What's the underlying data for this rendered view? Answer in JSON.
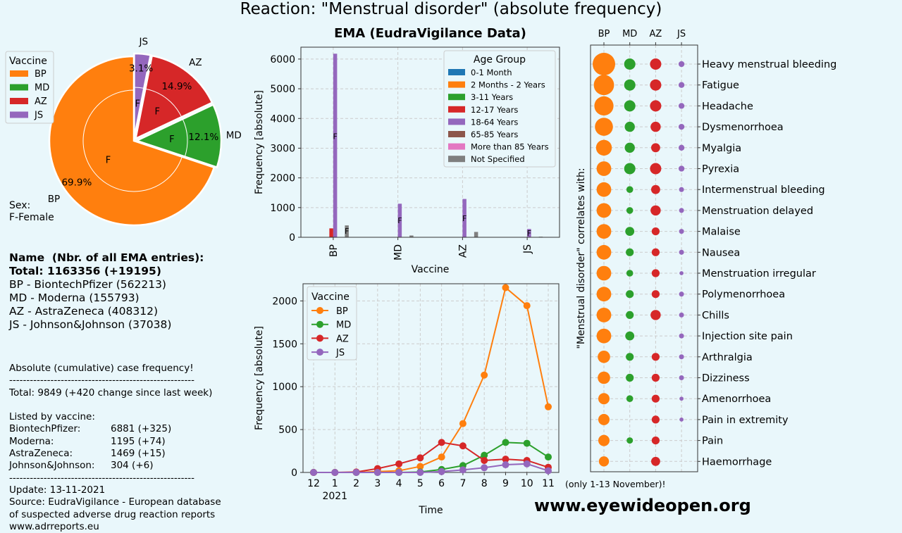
{
  "main_title": "Reaction: \"Menstrual disorder\" (absolute frequency)",
  "website": "www.eyewideopen.org",
  "sex_note": {
    "line1": "Sex:",
    "line2": "F-Female"
  },
  "info": {
    "header": "Name  (Nbr. of all EMA entries):",
    "total": "Total: 1163356 (+19195)",
    "vaccines": [
      "BP - BiontechPfizer (562213)",
      "MD - Moderna (155793)",
      "AZ - AstraZeneca (408312)",
      "JS - Johnson&Johnson (37038)"
    ]
  },
  "stats": {
    "heading": "Absolute (cumulative) case frequency!",
    "separator": "------------------------------------------------------",
    "total_line": "Total: 9849 (+420 change since last week)",
    "listed_by": "Listed by vaccine:",
    "rows": [
      {
        "name": "BiontechPfizer:",
        "value": "6881 (+325)"
      },
      {
        "name": "Moderna:",
        "value": "1195 (+74)"
      },
      {
        "name": "AstraZeneca:",
        "value": "1469 (+15)"
      },
      {
        "name": "Johnson&Johnson:",
        "value": "304 (+6)"
      }
    ],
    "update": "Update: 13-11-2021",
    "source1": "Source: EudraVigilance - European database",
    "source2": "of suspected adverse drug reaction reports",
    "source3": "www.adrreports.eu"
  },
  "colors": {
    "BP": "#ff7f0e",
    "MD": "#2ca02c",
    "AZ": "#d62728",
    "JS": "#9467bd",
    "grey": "#7f7f7f",
    "blue": "#1f77b4",
    "brown": "#8c564b",
    "pink": "#e377c2"
  },
  "chart_data": [
    {
      "type": "pie",
      "legend_title": "Vaccine",
      "legend_placement": "top-left",
      "categories": [
        "BP",
        "MD",
        "AZ",
        "JS"
      ],
      "values": [
        69.9,
        12.1,
        14.9,
        3.1
      ],
      "labels": [
        "69.9%",
        "12.1%",
        "14.9%",
        "3.1%"
      ],
      "inner_label": "F"
    },
    {
      "type": "bar",
      "title": "EMA (EudraVigilance Data)",
      "xlabel": "Vaccine",
      "ylabel": "Frequency [absolute]",
      "categories": [
        "BP",
        "MD",
        "AZ",
        "JS"
      ],
      "ylim": [
        0,
        6400
      ],
      "yticks": [
        0,
        1000,
        2000,
        3000,
        4000,
        5000,
        6000
      ],
      "legend_title": "Age Group",
      "legend_placement": "top-right",
      "series": [
        {
          "name": "0-1 Month",
          "color": "#1f77b4",
          "values": [
            0,
            0,
            0,
            0
          ]
        },
        {
          "name": "2 Months - 2 Years",
          "color": "#ff7f0e",
          "values": [
            0,
            0,
            0,
            0
          ]
        },
        {
          "name": "3-11 Years",
          "color": "#2ca02c",
          "values": [
            0,
            0,
            0,
            0
          ]
        },
        {
          "name": "12-17 Years",
          "color": "#d62728",
          "values": [
            300,
            0,
            0,
            0
          ]
        },
        {
          "name": "18-64 Years",
          "color": "#9467bd",
          "values": [
            6180,
            1130,
            1290,
            280
          ]
        },
        {
          "name": "65-85 Years",
          "color": "#8c564b",
          "values": [
            0,
            0,
            0,
            0
          ]
        },
        {
          "name": "More than 85 Years",
          "color": "#e377c2",
          "values": [
            0,
            0,
            0,
            0
          ]
        },
        {
          "name": "Not Specified",
          "color": "#7f7f7f",
          "values": [
            400,
            60,
            180,
            20
          ]
        }
      ],
      "bar_annotation": "F"
    },
    {
      "type": "line",
      "xlabel": "Time",
      "ylabel": "Frequency [absolute]",
      "x": [
        "12",
        "1",
        "2",
        "3",
        "4",
        "5",
        "6",
        "7",
        "8",
        "9",
        "10",
        "11"
      ],
      "x_sub_label": "2021",
      "ylim": [
        0,
        2200
      ],
      "yticks": [
        0,
        500,
        1000,
        1500,
        2000
      ],
      "legend_title": "Vaccine",
      "legend_placement": "top-left",
      "series": [
        {
          "name": "BP",
          "values": [
            0,
            0,
            0,
            10,
            20,
            70,
            180,
            570,
            1135,
            2155,
            1945,
            765
          ]
        },
        {
          "name": "MD",
          "values": [
            0,
            0,
            0,
            0,
            0,
            5,
            35,
            80,
            200,
            350,
            340,
            180
          ]
        },
        {
          "name": "AZ",
          "values": [
            0,
            0,
            5,
            45,
            100,
            170,
            350,
            310,
            140,
            155,
            140,
            60
          ]
        },
        {
          "name": "JS",
          "values": [
            0,
            0,
            0,
            0,
            0,
            0,
            10,
            30,
            55,
            90,
            100,
            20
          ]
        }
      ],
      "note": "(only 1-13 November)!"
    },
    {
      "type": "scatter",
      "ylabel": "\"Menstrual disorder\" correlates with:",
      "columns": [
        "BP",
        "MD",
        "AZ",
        "JS"
      ],
      "rows": [
        "Heavy menstrual bleeding",
        "Fatigue",
        "Headache",
        "Dysmenorrhoea",
        "Myalgia",
        "Pyrexia",
        "Intermenstrual bleeding",
        "Menstruation delayed",
        "Malaise",
        "Nausea",
        "Menstruation irregular",
        "Polymenorrhoea",
        "Chills",
        "Injection site pain",
        "Arthralgia",
        "Dizziness",
        "Amenorrhoea",
        "Pain in extremity",
        "Pain",
        "Haemorrhage"
      ],
      "sizes": [
        [
          10,
          5,
          5,
          2.6
        ],
        [
          9,
          5,
          5,
          2.6
        ],
        [
          8.5,
          5,
          5,
          2.6
        ],
        [
          8,
          4.5,
          4.5,
          2.6
        ],
        [
          7,
          4.5,
          4,
          2.6
        ],
        [
          6.5,
          5,
          5,
          2.6
        ],
        [
          6.5,
          3,
          4,
          2.2
        ],
        [
          6.5,
          3,
          4.5,
          2.2
        ],
        [
          6.5,
          4,
          3.5,
          2.2
        ],
        [
          6.5,
          3.5,
          3.5,
          2.2
        ],
        [
          6.5,
          3,
          3.5,
          1.8
        ],
        [
          6.5,
          3.5,
          3.5,
          2.2
        ],
        [
          6.5,
          3.5,
          4.5,
          2.2
        ],
        [
          6.5,
          4,
          0,
          2.2
        ],
        [
          5.5,
          3.5,
          3.5,
          2.2
        ],
        [
          5.5,
          3.5,
          3.5,
          2.2
        ],
        [
          5,
          3,
          3.5,
          1.8
        ],
        [
          5,
          0,
          3.5,
          1.8
        ],
        [
          5,
          2.8,
          3.5,
          0
        ],
        [
          4.5,
          0,
          4,
          0
        ]
      ]
    }
  ]
}
